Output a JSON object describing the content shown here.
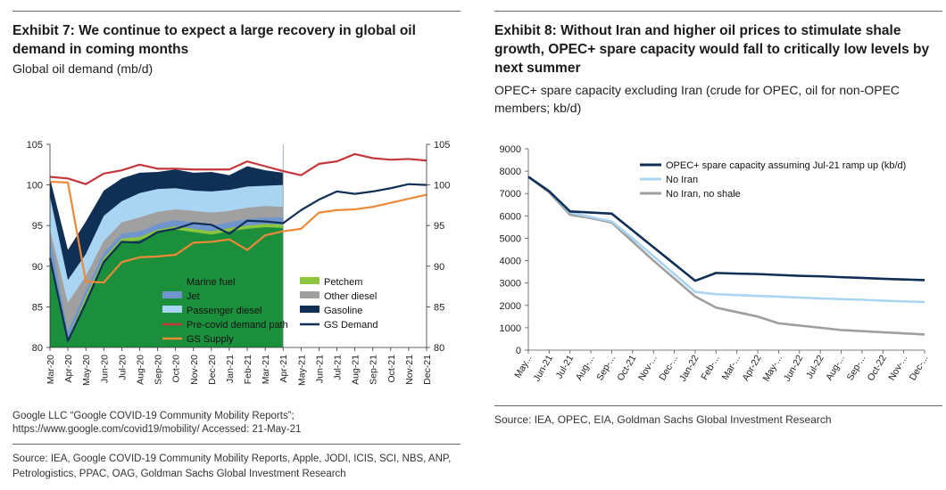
{
  "exhibit7": {
    "title": "Exhibit 7: We continue to expect a large recovery in global oil demand in coming months",
    "subtitle": "Global oil demand (mb/d)",
    "footnote_line1": "Google LLC “Google COVID-19 Community Mobility Reports”;",
    "footnote_line2": "https://www.google.com/covid19/mobility/ Accessed: 21-May-21",
    "source_line1": "Source: IEA, Google COVID-19 Community Mobility Reports, Apple, JODI, ICIS, SCI, NBS, ANP,",
    "source_line2": "Petrologistics, PPAC, OAG, Goldman Sachs Global Investment Research"
  },
  "exhibit8": {
    "title_line1": "Exhibit 8: Without Iran and higher oil prices to stimulate shale",
    "title_line2": "growth, OPEC+ spare capacity would fall to critically low levels by",
    "title_line3": "next summer",
    "subtitle_line1": "OPEC+ spare capacity excluding Iran (crude for OPEC, oil for non-OPEC",
    "subtitle_line2": "members; kb/d)",
    "source": "Source: IEA, OPEC, EIA, Goldman Sachs Global Investment Research"
  },
  "chart_data": [
    {
      "type": "area",
      "title": "Global oil demand (mb/d)",
      "x": [
        "Mar-20",
        "Apr-20",
        "May-20",
        "Jun-20",
        "Jul-20",
        "Aug-20",
        "Sep-20",
        "Oct-20",
        "Nov-20",
        "Dec-20",
        "Jan-21",
        "Feb-21",
        "Mar-21",
        "Apr-21",
        "May-21",
        "Jun-21",
        "Jul-21",
        "Aug-21",
        "Sep-21",
        "Oct-21",
        "Nov-21",
        "Dec-21"
      ],
      "ylim": [
        80,
        105
      ],
      "yticks": [
        80,
        85,
        90,
        95,
        100,
        105
      ],
      "y2ticks": [
        80,
        85,
        90,
        95,
        100,
        105
      ],
      "legend_position": "inside-bottom",
      "colors": {
        "marine_fuel": "#1b8f3c",
        "petchem": "#8cc63f",
        "jet": "#6f95cc",
        "other_diesel": "#a0a0a0",
        "passenger_diesel": "#a9d4f2",
        "gasoline": "#0f2f55",
        "precovid": "#c4373a",
        "gs_demand": "#0f2f55",
        "gs_supply": "#ed8a37"
      },
      "stacked_series": [
        {
          "name": "Marine fuel",
          "key": "marine_fuel",
          "values": [
            91.0,
            80.8,
            85.8,
            90.6,
            92.9,
            93.2,
            94.1,
            94.5,
            94.2,
            93.9,
            94.3,
            94.6,
            94.8,
            94.7
          ]
        },
        {
          "name": "Petchem",
          "key": "petchem",
          "values": [
            91.3,
            81.1,
            86.3,
            91.0,
            93.4,
            93.6,
            94.5,
            94.9,
            94.6,
            94.3,
            94.7,
            95.0,
            95.2,
            95.1
          ]
        },
        {
          "name": "Jet",
          "key": "jet",
          "values": [
            93.5,
            82.0,
            87.0,
            91.7,
            94.0,
            94.3,
            95.2,
            95.7,
            95.4,
            95.0,
            95.4,
            95.8,
            96.0,
            96.0
          ]
        },
        {
          "name": "Other diesel",
          "key": "other_diesel",
          "values": [
            94.5,
            85.5,
            88.8,
            93.1,
            95.4,
            96.0,
            96.7,
            97.0,
            96.8,
            96.6,
            96.8,
            97.2,
            97.4,
            97.3
          ]
        },
        {
          "name": "Passenger diesel",
          "key": "passenger_diesel",
          "values": [
            98.6,
            88.3,
            91.5,
            96.2,
            98.0,
            99.0,
            99.5,
            99.6,
            99.3,
            99.2,
            99.4,
            99.8,
            99.9,
            100.0
          ]
        },
        {
          "name": "Gasoline",
          "key": "gasoline",
          "values": [
            100.8,
            92.0,
            95.5,
            99.3,
            100.8,
            101.5,
            101.6,
            101.9,
            101.5,
            101.6,
            101.2,
            102.3,
            101.8,
            101.5
          ]
        }
      ],
      "series": [
        {
          "name": "Pre-covid demand path",
          "key": "precovid",
          "values": [
            101.0,
            100.8,
            100.1,
            101.4,
            101.8,
            102.5,
            102.0,
            102.0,
            101.9,
            101.9,
            101.9,
            102.9,
            102.3,
            101.7,
            101.2,
            102.6,
            102.9,
            103.8,
            103.3,
            103.1,
            103.2,
            103.0
          ]
        },
        {
          "name": "GS Demand",
          "key": "gs_demand",
          "values": [
            91.0,
            80.8,
            85.5,
            90.5,
            93.0,
            92.9,
            94.2,
            94.6,
            95.3,
            95.1,
            94.0,
            95.6,
            95.5,
            95.3,
            96.9,
            98.2,
            99.2,
            98.9,
            99.2,
            99.6,
            100.1,
            100.0
          ]
        },
        {
          "name": "GS Supply",
          "key": "gs_supply",
          "values": [
            100.4,
            100.3,
            88.1,
            88.0,
            90.5,
            91.1,
            91.2,
            91.4,
            92.9,
            93.0,
            93.3,
            92.0,
            93.8,
            94.3,
            94.6,
            96.6,
            96.9,
            97.0,
            97.3,
            97.8,
            98.3,
            98.8
          ]
        }
      ]
    },
    {
      "type": "line",
      "x": [
        "May-21",
        "Jun-21",
        "Jul-21",
        "Aug-21",
        "Sep-21",
        "Oct-21",
        "Nov-21",
        "Dec-21",
        "Jan-22",
        "Feb-22",
        "Mar-22",
        "Apr-22",
        "May-22",
        "Jun-22",
        "Jul-22",
        "Aug-22",
        "Sep-22",
        "Oct-22",
        "Nov-22",
        "Dec-22"
      ],
      "xtick_labels": [
        "May...",
        "Jun-21",
        "Jul-21",
        "Aug-...",
        "Sep-...",
        "Oct-21",
        "Nov-...",
        "Dec-...",
        "Jan-22",
        "Feb-...",
        "Mar-...",
        "Apr-22",
        "May-...",
        "Jun-22",
        "Jul-22",
        "Aug-...",
        "Sep-...",
        "Oct-22",
        "Nov-...",
        "Dec-..."
      ],
      "ylim": [
        0,
        9000
      ],
      "yticks": [
        0,
        1000,
        2000,
        3000,
        4000,
        5000,
        6000,
        7000,
        8000,
        9000
      ],
      "legend_position": "top-right",
      "series": [
        {
          "name": "OPEC+ spare capacity assuming Jul-21 ramp up (kb/d)",
          "color": "#0f2f55",
          "values": [
            7750,
            7100,
            6200,
            6150,
            6100,
            5350,
            4600,
            3850,
            3100,
            3450,
            3420,
            3400,
            3360,
            3320,
            3300,
            3260,
            3230,
            3190,
            3160,
            3130
          ]
        },
        {
          "name": "No Iran",
          "color": "#a9d4f2",
          "values": [
            7750,
            7100,
            6150,
            5950,
            5750,
            5000,
            4200,
            3400,
            2600,
            2500,
            2460,
            2420,
            2390,
            2350,
            2310,
            2280,
            2250,
            2210,
            2180,
            2150
          ]
        },
        {
          "name": "No Iran, no shale",
          "color": "#9e9e9e",
          "values": [
            7750,
            7050,
            6050,
            5900,
            5700,
            4850,
            4000,
            3200,
            2400,
            1900,
            1700,
            1500,
            1200,
            1100,
            1000,
            900,
            850,
            800,
            750,
            700
          ]
        }
      ]
    }
  ]
}
